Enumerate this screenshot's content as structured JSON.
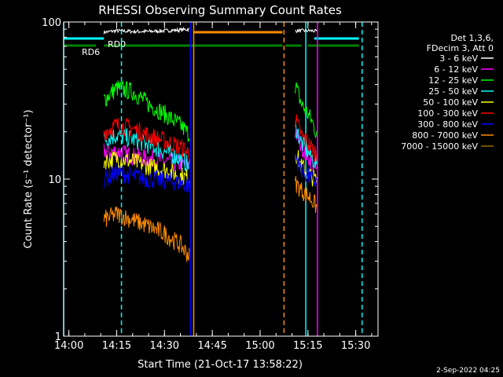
{
  "chart_data": {
    "type": "line",
    "title": "RHESSI Observing Summary Count Rates",
    "xlabel": "Start Time (21-Oct-17 13:58:22)",
    "ylabel": "Count Rate (s⁻¹ detector⁻¹)",
    "footer_date": "2-Sep-2022 04:25",
    "xlim": [
      "13:58:22",
      "15:37:00"
    ],
    "ylim": [
      1,
      100
    ],
    "yscale": "log",
    "x_ticks": [
      "14:00",
      "14:15",
      "14:30",
      "14:45",
      "15:00",
      "15:15",
      "15:30"
    ],
    "y_ticks": [
      "1",
      "10",
      "100"
    ],
    "legend_header": [
      "Det 1,3,6,",
      "FDecim 3, Att 0"
    ],
    "legend_position": "top-right",
    "series": [
      {
        "name": "3 - 6 keV",
        "color": "#ffffff",
        "segments": [
          {
            "x": [
              "14:11",
              "14:15",
              "14:20",
              "14:25",
              "14:30",
              "14:35",
              "14:38"
            ],
            "y": [
              86,
              88,
              87,
              87,
              88,
              89,
              90
            ]
          },
          {
            "x": [
              "15:11",
              "15:13",
              "15:16",
              "15:18"
            ],
            "y": [
              88,
              88,
              88,
              87
            ]
          }
        ]
      },
      {
        "name": "6 - 12 keV",
        "color": "#ff00ff",
        "segments": [
          {
            "x": [
              "14:11",
              "14:15",
              "14:20",
              "14:25",
              "14:30",
              "14:35",
              "14:38"
            ],
            "y": [
              15,
              15,
              14,
              13.5,
              13,
              12.5,
              12
            ]
          },
          {
            "x": [
              "15:11",
              "15:13",
              "15:16",
              "15:18"
            ],
            "y": [
              20,
              16,
              13,
              11
            ]
          }
        ]
      },
      {
        "name": "12 - 25 keV",
        "color": "#00ff00",
        "segments": [
          {
            "x": [
              "14:11",
              "14:15",
              "14:20",
              "14:25",
              "14:30",
              "14:35",
              "14:38"
            ],
            "y": [
              32,
              38,
              36,
              30,
              26,
              22,
              19
            ]
          },
          {
            "x": [
              "15:11",
              "15:13",
              "15:16",
              "15:18"
            ],
            "y": [
              40,
              30,
              24,
              19
            ]
          }
        ]
      },
      {
        "name": "25 - 50 keV",
        "color": "#00ffff",
        "segments": [
          {
            "x": [
              "14:11",
              "14:15",
              "14:20",
              "14:25",
              "14:30",
              "14:35",
              "14:38"
            ],
            "y": [
              18,
              19,
              18,
              16.5,
              15,
              13.5,
              12
            ]
          },
          {
            "x": [
              "15:11",
              "15:13",
              "15:16",
              "15:18"
            ],
            "y": [
              22,
              17,
              14,
              12
            ]
          }
        ]
      },
      {
        "name": "50 - 100 keV",
        "color": "#ffff00",
        "segments": [
          {
            "x": [
              "14:11",
              "14:15",
              "14:20",
              "14:25",
              "14:30",
              "14:35",
              "14:38"
            ],
            "y": [
              13,
              13.5,
              13,
              12,
              11.5,
              10.5,
              10
            ]
          },
          {
            "x": [
              "15:11",
              "15:13",
              "15:16",
              "15:18"
            ],
            "y": [
              15,
              12,
              10.5,
              9.5
            ]
          }
        ]
      },
      {
        "name": "100 - 300 keV",
        "color": "#ff0000",
        "segments": [
          {
            "x": [
              "14:11",
              "14:15",
              "14:20",
              "14:25",
              "14:30",
              "14:35",
              "14:38"
            ],
            "y": [
              20,
              22,
              21,
              19,
              17.5,
              16,
              14.5
            ]
          },
          {
            "x": [
              "15:11",
              "15:13",
              "15:16",
              "15:18"
            ],
            "y": [
              24,
              19,
              16,
              14
            ]
          }
        ]
      },
      {
        "name": "300 - 800 keV",
        "color": "#0000ff",
        "segments": [
          {
            "x": [
              "14:11",
              "14:15",
              "14:20",
              "14:25",
              "14:30",
              "14:35",
              "14:38"
            ],
            "y": [
              10,
              11,
              10.5,
              10,
              9.8,
              9.5,
              9
            ]
          },
          {
            "x": [
              "15:11",
              "15:13",
              "15:16",
              "15:18"
            ],
            "y": [
              14,
              11.5,
              10,
              9.5
            ]
          }
        ]
      },
      {
        "name": "800 - 7000 keV",
        "color": "#ff8c00",
        "segments": [
          {
            "x": [
              "14:11",
              "14:15",
              "14:20",
              "14:25",
              "14:30",
              "14:35",
              "14:38"
            ],
            "y": [
              5.5,
              6,
              5.5,
              5,
              4.5,
              3.8,
              3.2
            ]
          },
          {
            "x": [
              "15:11",
              "15:13",
              "15:16",
              "15:18"
            ],
            "y": [
              9.5,
              8.5,
              7.5,
              6.5
            ]
          }
        ]
      },
      {
        "name": "7000 - 15000 keV",
        "color": "#9c6a00",
        "segments": []
      }
    ],
    "state_bars": [
      {
        "label": "RD0",
        "color": "#00ffff",
        "segments": [
          [
            "13:58:22",
            "14:11"
          ],
          [
            "15:17",
            "15:31"
          ]
        ]
      },
      {
        "label": "RD6",
        "color": "#008000",
        "segments": [
          [
            "13:58:22",
            "14:08:30"
          ],
          [
            "14:11",
            "14:28:30"
          ],
          [
            "14:28:30",
            "15:07"
          ],
          [
            "15:08",
            "15:13"
          ],
          [
            "15:15",
            "15:31"
          ]
        ]
      },
      {
        "label": "",
        "color": "#008000",
        "segments": [
          [
            "13:58:22",
            "14:08:30"
          ]
        ]
      },
      {
        "label": "",
        "color": "#ff8c00",
        "segments": [
          [
            "14:39",
            "15:07"
          ]
        ]
      }
    ],
    "vertical_lines": [
      {
        "x": "13:58:22",
        "color": "#00ffff",
        "style": "solid"
      },
      {
        "x": "14:16:30",
        "color": "#00ffff",
        "style": "dashed"
      },
      {
        "x": "14:38:10",
        "color": "#0000ff",
        "style": "solid"
      },
      {
        "x": "14:39:10",
        "color": "#ff8c00",
        "style": "solid"
      },
      {
        "x": "15:07:30",
        "color": "#ff8c00",
        "style": "dashed"
      },
      {
        "x": "15:14:20",
        "color": "#00ffff",
        "style": "solid"
      },
      {
        "x": "15:18:00",
        "color": "#ff00ff",
        "style": "solid"
      },
      {
        "x": "15:32:00",
        "color": "#00ffff",
        "style": "dashed"
      }
    ],
    "grid": false
  }
}
